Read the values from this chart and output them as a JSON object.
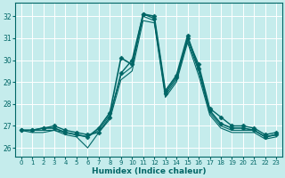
{
  "xlabel": "Humidex (Indice chaleur)",
  "background_color": "#c5ecec",
  "grid_color": "#ffffff",
  "line_color": "#006666",
  "x": [
    0,
    1,
    2,
    3,
    4,
    5,
    6,
    7,
    8,
    9,
    10,
    11,
    12,
    13,
    14,
    15,
    16,
    17,
    18,
    19,
    20,
    21,
    22,
    23
  ],
  "series": [
    {
      "y": [
        26.8,
        26.8,
        26.9,
        27.0,
        26.8,
        26.7,
        26.6,
        26.7,
        27.4,
        29.4,
        30.0,
        32.1,
        31.9,
        28.5,
        29.2,
        31.0,
        29.8,
        27.8,
        27.4,
        27.0,
        27.0,
        26.9,
        26.6,
        26.7
      ],
      "marker": "D",
      "lw": 1.0,
      "ms": 2.5
    },
    {
      "y": [
        26.8,
        26.8,
        26.9,
        26.9,
        26.7,
        26.6,
        26.5,
        26.9,
        27.6,
        30.1,
        29.8,
        32.1,
        32.0,
        28.6,
        29.3,
        31.1,
        29.6,
        27.7,
        27.1,
        26.9,
        26.9,
        26.8,
        26.5,
        26.6
      ],
      "marker": "D",
      "lw": 1.2,
      "ms": 2.5
    },
    {
      "y": [
        26.8,
        26.8,
        26.8,
        26.8,
        26.7,
        26.6,
        26.5,
        26.8,
        27.5,
        29.3,
        29.7,
        32.0,
        31.8,
        28.4,
        29.1,
        30.9,
        29.5,
        27.6,
        27.0,
        26.8,
        26.8,
        26.8,
        26.5,
        26.6
      ],
      "marker": null,
      "lw": 0.8,
      "ms": 0
    },
    {
      "y": [
        26.8,
        26.7,
        26.7,
        26.8,
        26.6,
        26.5,
        26.0,
        26.7,
        27.3,
        29.1,
        29.5,
        31.8,
        31.7,
        28.3,
        29.0,
        30.8,
        29.3,
        27.5,
        26.9,
        26.7,
        26.7,
        26.7,
        26.4,
        26.5
      ],
      "marker": null,
      "lw": 0.8,
      "ms": 0
    }
  ],
  "ylim": [
    25.6,
    32.6
  ],
  "yticks": [
    26,
    27,
    28,
    29,
    30,
    31,
    32
  ],
  "xticks": [
    0,
    1,
    2,
    3,
    4,
    5,
    6,
    7,
    8,
    9,
    10,
    11,
    12,
    13,
    14,
    15,
    16,
    17,
    18,
    19,
    20,
    21,
    22,
    23
  ]
}
